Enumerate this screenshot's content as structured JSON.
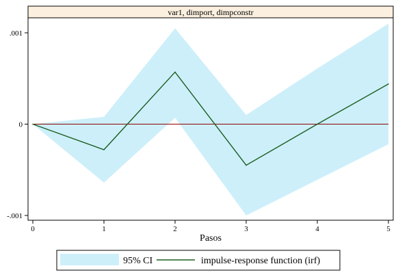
{
  "chart_data": {
    "type": "line",
    "panel_title": "var1, dimport, dimpconstr",
    "xlabel": "Pasos",
    "ylabel": "",
    "x": [
      0,
      1,
      2,
      3,
      4,
      5
    ],
    "xlim": [
      0,
      5
    ],
    "ylim": [
      -0.001,
      0.001
    ],
    "x_ticks": [
      "0",
      "1",
      "2",
      "3",
      "4",
      "5"
    ],
    "y_ticks": [
      {
        "value": -0.001,
        "label": "-.001"
      },
      {
        "value": 0,
        "label": "0"
      },
      {
        "value": 0.001,
        "label": ".001"
      }
    ],
    "series": [
      {
        "name": "impulse-response function (irf)",
        "values": [
          0,
          -0.00028,
          0.00057,
          -0.00045,
          0.0,
          0.00044
        ]
      }
    ],
    "ci": {
      "name": "95% CI",
      "lower": [
        0,
        -0.00064,
        7e-05,
        -0.001,
        -0.00061,
        -0.00022
      ],
      "upper": [
        0,
        8e-05,
        0.00105,
        0.0001,
        0.00061,
        0.0011
      ]
    },
    "reference_line": 0,
    "grid": false,
    "legend_position": "bottom",
    "colors": {
      "ci_fill": "#cdeffa",
      "irf_line": "#1b5e20",
      "reference_line": "#8b0000",
      "header_bg": "#fbf0df",
      "axis": "#000000"
    }
  },
  "legend": {
    "ci_label": "95% CI",
    "irf_label": "impulse-response function (irf)"
  }
}
